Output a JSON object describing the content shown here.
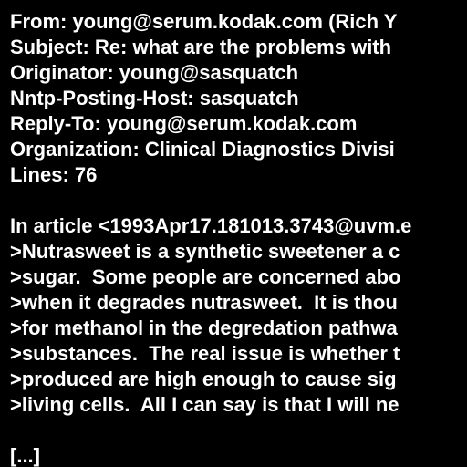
{
  "header": {
    "from": "From: young@serum.kodak.com (Rich Y",
    "subject": "Subject: Re: what are the problems with",
    "originator": "Originator: young@sasquatch",
    "nntp_posting_host": "Nntp-Posting-Host: sasquatch",
    "reply_to": "Reply-To: young@serum.kodak.com",
    "organization": "Organization: Clinical Diagnostics Divisi",
    "lines": "Lines: 76"
  },
  "body": {
    "attribution": "In article <1993Apr17.181013.3743@uvm.e",
    "quoted_lines": [
      ">Nutrasweet is a synthetic sweetener a c",
      ">sugar.  Some people are concerned abo",
      ">when it degrades nutrasweet.  It is thou",
      ">for methanol in the degredation pathwa",
      ">substances.  The real issue is whether t",
      ">produced are high enough to cause sig",
      ">living cells.  All I can say is that I will ne"
    ],
    "ellipsis": "[...]"
  },
  "colors": {
    "background": "#000000",
    "text": "#ffffff"
  }
}
